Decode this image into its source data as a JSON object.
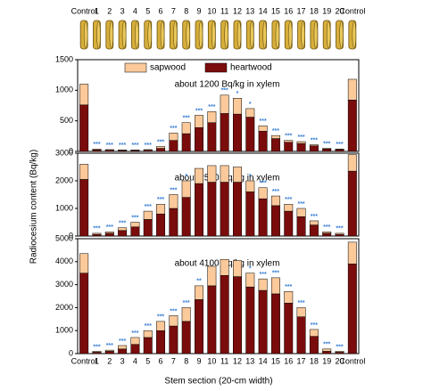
{
  "chart_data": [
    {
      "type": "bar",
      "stacked": true,
      "title": "about 1200 Bq/kg in xylem",
      "categories": [
        "Control",
        "1",
        "2",
        "3",
        "4",
        "5",
        "6",
        "7",
        "8",
        "9",
        "10",
        "11",
        "12",
        "13",
        "14",
        "15",
        "16",
        "17",
        "18",
        "19",
        "20",
        "Control"
      ],
      "series": [
        {
          "name": "heartwood",
          "color": "#7a0c0c",
          "values": [
            760,
            25,
            20,
            15,
            15,
            20,
            50,
            180,
            290,
            390,
            470,
            620,
            610,
            560,
            330,
            210,
            150,
            130,
            90,
            40,
            30,
            840
          ]
        },
        {
          "name": "sapwood",
          "color": "#fbc99a",
          "values": [
            340,
            15,
            10,
            10,
            10,
            10,
            30,
            120,
            180,
            200,
            180,
            300,
            260,
            140,
            90,
            50,
            30,
            30,
            20,
            10,
            10,
            340
          ]
        }
      ],
      "sig_labels": [
        null,
        "***",
        "***",
        "***",
        "***",
        "***",
        "***",
        "***",
        "***",
        "***",
        "***",
        "***",
        "*",
        "*",
        "***",
        "***",
        "***",
        "***",
        "***",
        "***",
        "***",
        null
      ],
      "legend": "top-center",
      "ylim": [
        0,
        1500
      ],
      "yticks": [
        0,
        500,
        1000,
        1500
      ]
    },
    {
      "type": "bar",
      "stacked": true,
      "title": "about 2500 Bq/kg in xylem",
      "y_label": "Radiocesium content (Bq/kg)",
      "series": [
        {
          "name": "heartwood",
          "color": "#7a0c0c",
          "values": [
            2050,
            60,
            100,
            200,
            330,
            600,
            800,
            1000,
            1400,
            1900,
            1950,
            1950,
            1950,
            1600,
            1350,
            1100,
            900,
            700,
            400,
            100,
            60,
            2350
          ]
        },
        {
          "name": "sapwood",
          "color": "#fbc99a",
          "values": [
            550,
            40,
            50,
            100,
            170,
            300,
            350,
            500,
            600,
            550,
            600,
            600,
            550,
            400,
            400,
            350,
            250,
            300,
            150,
            50,
            40,
            600
          ]
        }
      ],
      "sig_labels": [
        null,
        "***",
        "***",
        "***",
        "***",
        "***",
        "***",
        "***",
        "*",
        "",
        "",
        "",
        "",
        "*",
        "***",
        "***",
        "***",
        "***",
        "***",
        "***",
        "***",
        null
      ],
      "ylim": [
        0,
        3000
      ],
      "yticks": [
        0,
        1000,
        2000,
        3000
      ]
    },
    {
      "type": "bar",
      "stacked": true,
      "title": "about 4100 Bq/kg in xylem",
      "x_label": "Stem section (20-cm width)",
      "categories": [
        "Control",
        "1",
        "2",
        "3",
        "4",
        "5",
        "6",
        "7",
        "8",
        "9",
        "10",
        "11",
        "12",
        "13",
        "14",
        "15",
        "16",
        "17",
        "18",
        "19",
        "20",
        "Control"
      ],
      "series": [
        {
          "name": "heartwood",
          "color": "#7a0c0c",
          "values": [
            3500,
            60,
            100,
            200,
            400,
            700,
            1000,
            1200,
            1400,
            2350,
            2950,
            3400,
            3350,
            2900,
            2750,
            2600,
            2200,
            1600,
            750,
            100,
            60,
            3900
          ]
        },
        {
          "name": "sapwood",
          "color": "#fbc99a",
          "values": [
            850,
            40,
            50,
            150,
            300,
            300,
            400,
            450,
            600,
            600,
            850,
            700,
            700,
            600,
            500,
            700,
            500,
            400,
            300,
            100,
            40,
            950
          ]
        }
      ],
      "sig_labels": [
        null,
        "***",
        "***",
        "***",
        "***",
        "***",
        "***",
        "***",
        "***",
        "**",
        "",
        "",
        "",
        "*",
        "***",
        "***",
        "***",
        "***",
        "***",
        "***",
        "***",
        null
      ],
      "ylim": [
        0,
        5000
      ],
      "yticks": [
        0,
        1000,
        2000,
        3000,
        4000,
        5000
      ]
    }
  ]
}
